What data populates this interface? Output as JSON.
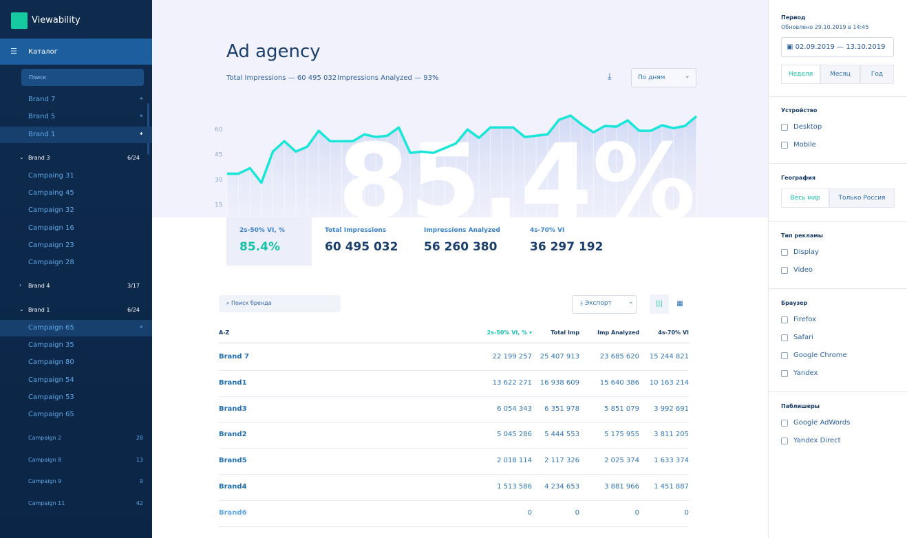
{
  "sidebar": {
    "app": "Viewability",
    "catalog": "Каталог",
    "search": "Поиск",
    "pinned": [
      "Brand 7",
      "Brand 5",
      "Brand 1"
    ],
    "groups": [
      {
        "name": "Brand 3",
        "count": "6/24",
        "items": [
          "Campaing 31",
          "Campaing 45",
          "Campaign 32",
          "Campaign 16",
          "Campaign 23",
          "Campaign 28"
        ]
      },
      {
        "name": "Brand 4",
        "count": "3/17",
        "items": []
      },
      {
        "name": "Brand 1",
        "count": "6/24",
        "items": [
          "Campaign 65",
          "Campaign 35",
          "Campaign 80",
          "Campaign 54",
          "Campaign 53",
          "Campaign 65"
        ]
      }
    ],
    "campaigns": [
      {
        "name": "Campaign 2",
        "count": 28
      },
      {
        "name": "Campaign 8",
        "count": 13
      },
      {
        "name": "Campaign 9",
        "count": 9
      },
      {
        "name": "Campaign 11",
        "count": 42
      }
    ]
  },
  "header": {
    "title": "Ad agency",
    "total": "Total Impressions — 60 495 032",
    "analyzed": "Impressions Analyzed — 93%",
    "period_select": "По дням"
  },
  "chart": {
    "type": "line",
    "color": "#19e6d8",
    "ylim": [
      7.5,
      72
    ],
    "yticks": [
      15,
      30,
      45,
      60
    ],
    "values": [
      33.6,
      33.6,
      36.9,
      28.2,
      46.8,
      53,
      46.8,
      49.7,
      59.2,
      53,
      53,
      53,
      57.1,
      55.5,
      56.3,
      61.2,
      46,
      46.8,
      46,
      48.8,
      51.7,
      60,
      55,
      61.2,
      61.2,
      61.2,
      55.5,
      56.3,
      57.1,
      65.8,
      68.3,
      62.9,
      58.3,
      62.1,
      61.7,
      65.4,
      59.2,
      59.2,
      62.5,
      60.8,
      62.1,
      67.9
    ]
  },
  "kpis": [
    {
      "label": "2s-50% VI, %",
      "value": "85.4%"
    },
    {
      "label": "Total Impressions",
      "value": "60 495 032"
    },
    {
      "label": "Impressions Analyzed",
      "value": "56 260 380"
    },
    {
      "label": "4s-70% VI",
      "value": "36 297 192"
    }
  ],
  "table": {
    "search": "Поиск бренда",
    "export": "Экспорт",
    "columns": [
      "A-Z",
      "2s-50% VI, % ▾",
      "Total Imp",
      "Imp Analyzed",
      "4s-70% VI"
    ],
    "rows": [
      [
        "Brand 7",
        "22 199 257",
        "25 407 913",
        "23 685 620",
        "15 244 821"
      ],
      [
        "Brand1",
        "13 622 271",
        "16 938 609",
        "15 640 386",
        "10 163 214"
      ],
      [
        "Brand3",
        "6 054 343",
        "6 351 978",
        "5 851 079",
        "3 992 691"
      ],
      [
        "Brand2",
        "5 045 286",
        "5 444 553",
        "5 175 955",
        "3 811 205"
      ],
      [
        "Brand5",
        "2 018 114",
        "2 117 326",
        "2 025 374",
        "1 633 374"
      ],
      [
        "Brand4",
        "1 513 586",
        "4 234 653",
        "3 881 966",
        "1 451 887"
      ],
      [
        "Brand6",
        "0",
        "0",
        "0",
        "0"
      ]
    ]
  },
  "filters": {
    "period": "Период",
    "updated": "Обновлено 29.10.2019 в 14:45",
    "range": "02.09.2019 — 13.10.2019",
    "granularity": [
      "Неделя",
      "Месяц",
      "Год"
    ],
    "device": {
      "title": "Устройство",
      "options": [
        "Desktop",
        "Mobile"
      ]
    },
    "geo": {
      "title": "География",
      "options": [
        "Весь мир",
        "Только Россия"
      ]
    },
    "ad_type": {
      "title": "Тип рекламы",
      "options": [
        "Display",
        "Video"
      ]
    },
    "browser": {
      "title": "Браузер",
      "options": [
        "Firefox",
        "Safari",
        "Google Chrome",
        "Yandex"
      ]
    },
    "publishers": {
      "title": "Паблишеры",
      "options": [
        "Google AdWords",
        "Yandex Direct"
      ]
    }
  }
}
